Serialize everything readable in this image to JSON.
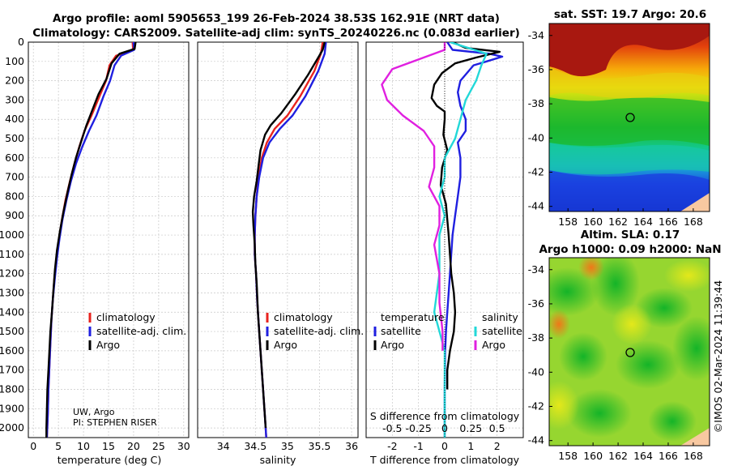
{
  "header": {
    "line1": "Argo profile: aoml 5905653_199 26-Feb-2024 38.53S 162.91E (NRT data)",
    "line2": "Climatology: CARS2009. Satellite-adj clim: synTS_20240226.nc (0.083d earlier)"
  },
  "credits": {
    "line1": "UW, Argo",
    "line2": "PI: STEPHEN RISER"
  },
  "watermark": "©IMOS 02-Mar-2024 11:39:44",
  "colors": {
    "climatology": "#e8231e",
    "satellite": "#1f1fe0",
    "argo": "#000000",
    "sat_s": "#22d8d8",
    "argo_s": "#e020e0"
  },
  "chart_data": [
    {
      "type": "line",
      "id": "temperature",
      "xlabel": "temperature (deg C)",
      "xlim": [
        -1,
        31
      ],
      "xticks": [
        "0",
        "5",
        "10",
        "15",
        "20",
        "25",
        "30"
      ],
      "ylim": [
        0,
        2050
      ],
      "yticks": [
        "0",
        "100",
        "200",
        "300",
        "400",
        "500",
        "600",
        "700",
        "800",
        "900",
        "1000",
        "1100",
        "1200",
        "1300",
        "1400",
        "1500",
        "1600",
        "1700",
        "1800",
        "1900",
        "2000"
      ],
      "legend": [
        "climatology",
        "satellite-adj. clim.",
        "Argo"
      ],
      "series": [
        {
          "name": "climatology",
          "color": "#e8231e",
          "points": [
            [
              19.8,
              0
            ],
            [
              19.9,
              40
            ],
            [
              16.5,
              70
            ],
            [
              15.2,
              120
            ],
            [
              14.5,
              200
            ],
            [
              13.2,
              280
            ],
            [
              11.6,
              380
            ],
            [
              10.2,
              460
            ],
            [
              9.2,
              540
            ],
            [
              8.2,
              630
            ],
            [
              7.3,
              720
            ],
            [
              6.4,
              820
            ],
            [
              5.7,
              920
            ],
            [
              5.1,
              1020
            ],
            [
              4.6,
              1120
            ],
            [
              4.2,
              1220
            ],
            [
              3.9,
              1330
            ],
            [
              3.6,
              1440
            ],
            [
              3.4,
              1560
            ],
            [
              3.2,
              1680
            ],
            [
              3.0,
              1800
            ],
            [
              2.9,
              1920
            ],
            [
              2.7,
              2050
            ]
          ]
        },
        {
          "name": "satellite-adj. clim.",
          "color": "#1f1fe0",
          "points": [
            [
              20.0,
              0
            ],
            [
              20.1,
              40
            ],
            [
              17.5,
              70
            ],
            [
              16.2,
              120
            ],
            [
              15.3,
              200
            ],
            [
              14.0,
              280
            ],
            [
              12.6,
              380
            ],
            [
              11.1,
              460
            ],
            [
              9.8,
              540
            ],
            [
              8.5,
              630
            ],
            [
              7.5,
              720
            ],
            [
              6.6,
              820
            ],
            [
              5.8,
              920
            ],
            [
              5.2,
              1020
            ],
            [
              4.7,
              1120
            ],
            [
              4.3,
              1220
            ],
            [
              3.9,
              1330
            ],
            [
              3.6,
              1440
            ],
            [
              3.4,
              1560
            ],
            [
              3.2,
              1680
            ],
            [
              3.0,
              1800
            ],
            [
              2.9,
              1920
            ],
            [
              2.7,
              2050
            ]
          ]
        },
        {
          "name": "Argo",
          "color": "#000000",
          "points": [
            [
              20.4,
              0
            ],
            [
              20.2,
              35
            ],
            [
              17.2,
              60
            ],
            [
              15.6,
              110
            ],
            [
              14.6,
              190
            ],
            [
              13.0,
              270
            ],
            [
              11.8,
              350
            ],
            [
              10.6,
              430
            ],
            [
              9.6,
              510
            ],
            [
              8.5,
              600
            ],
            [
              7.6,
              690
            ],
            [
              6.8,
              780
            ],
            [
              6.0,
              880
            ],
            [
              5.3,
              980
            ],
            [
              4.7,
              1080
            ],
            [
              4.3,
              1180
            ],
            [
              4.0,
              1290
            ],
            [
              3.7,
              1400
            ],
            [
              3.4,
              1500
            ],
            [
              3.2,
              1600
            ],
            [
              3.0,
              1700
            ],
            [
              2.8,
              1800
            ],
            [
              2.7,
              1900
            ],
            [
              2.6,
              2000
            ],
            [
              2.6,
              2050
            ]
          ]
        }
      ]
    },
    {
      "type": "line",
      "id": "salinity",
      "xlabel": "salinity",
      "xlim": [
        33.6,
        36.1
      ],
      "xticks": [
        "34",
        "34.5",
        "35",
        "35.5",
        "36"
      ],
      "ylim": [
        0,
        2050
      ],
      "legend": [
        "climatology",
        "satellite-adj. clim.",
        "Argo"
      ],
      "series": [
        {
          "name": "climatology",
          "color": "#e8231e",
          "points": [
            [
              35.55,
              0
            ],
            [
              35.52,
              60
            ],
            [
              35.42,
              150
            ],
            [
              35.2,
              280
            ],
            [
              35.0,
              380
            ],
            [
              34.8,
              450
            ],
            [
              34.68,
              520
            ],
            [
              34.6,
              600
            ],
            [
              34.55,
              700
            ],
            [
              34.52,
              800
            ],
            [
              34.5,
              900
            ],
            [
              34.49,
              1000
            ],
            [
              34.49,
              1100
            ],
            [
              34.51,
              1200
            ],
            [
              34.53,
              1350
            ],
            [
              34.56,
              1500
            ],
            [
              34.59,
              1650
            ],
            [
              34.62,
              1800
            ],
            [
              34.65,
              1950
            ],
            [
              34.67,
              2050
            ]
          ]
        },
        {
          "name": "satellite-adj. clim.",
          "color": "#1f1fe0",
          "points": [
            [
              35.6,
              0
            ],
            [
              35.58,
              60
            ],
            [
              35.48,
              150
            ],
            [
              35.28,
              280
            ],
            [
              35.08,
              380
            ],
            [
              34.88,
              450
            ],
            [
              34.72,
              520
            ],
            [
              34.62,
              600
            ],
            [
              34.56,
              700
            ],
            [
              34.52,
              800
            ],
            [
              34.5,
              900
            ],
            [
              34.49,
              1000
            ],
            [
              34.49,
              1100
            ],
            [
              34.51,
              1200
            ],
            [
              34.53,
              1350
            ],
            [
              34.56,
              1500
            ],
            [
              34.59,
              1650
            ],
            [
              34.62,
              1800
            ],
            [
              34.65,
              1950
            ],
            [
              34.67,
              2050
            ]
          ]
        },
        {
          "name": "Argo",
          "color": "#000000",
          "points": [
            [
              35.58,
              0
            ],
            [
              35.55,
              40
            ],
            [
              35.48,
              80
            ],
            [
              35.32,
              170
            ],
            [
              35.12,
              270
            ],
            [
              34.9,
              370
            ],
            [
              34.74,
              430
            ],
            [
              34.65,
              480
            ],
            [
              34.58,
              560
            ],
            [
              34.55,
              640
            ],
            [
              34.52,
              720
            ],
            [
              34.48,
              800
            ],
            [
              34.46,
              880
            ],
            [
              34.47,
              950
            ],
            [
              34.49,
              1050
            ],
            [
              34.5,
              1150
            ],
            [
              34.52,
              1250
            ],
            [
              34.54,
              1400
            ],
            [
              34.57,
              1550
            ],
            [
              34.6,
              1700
            ],
            [
              34.63,
              1850
            ],
            [
              34.66,
              2000
            ]
          ]
        }
      ]
    },
    {
      "type": "line",
      "id": "difference",
      "xlabel": "T difference from climatology",
      "xlabel_top": "S difference from climatology",
      "xlim": [
        -3,
        3
      ],
      "xticks": [
        "-2",
        "-1",
        "0",
        "1",
        "2"
      ],
      "s_xticks": [
        "-0.5",
        "-0.25",
        "0",
        "0.25",
        "0.5"
      ],
      "ylim": [
        0,
        2050
      ],
      "legend_temperature": {
        "title": "temperature",
        "items": [
          "satellite",
          "Argo"
        ]
      },
      "legend_salinity": {
        "title": "salinity",
        "items": [
          "satellite",
          "Argo"
        ]
      },
      "series": [
        {
          "name": "T satellite",
          "color": "#1f1fe0",
          "points": [
            [
              0.1,
              0
            ],
            [
              0.3,
              40
            ],
            [
              1.7,
              60
            ],
            [
              2.2,
              75
            ],
            [
              1.6,
              100
            ],
            [
              1.1,
              120
            ],
            [
              0.6,
              200
            ],
            [
              0.5,
              260
            ],
            [
              0.6,
              330
            ],
            [
              0.8,
              400
            ],
            [
              0.8,
              460
            ],
            [
              0.5,
              520
            ],
            [
              0.6,
              600
            ],
            [
              0.6,
              700
            ],
            [
              0.5,
              800
            ],
            [
              0.4,
              900
            ],
            [
              0.3,
              1000
            ],
            [
              0.25,
              1100
            ],
            [
              0.2,
              1200
            ],
            [
              0.15,
              1300
            ],
            [
              0.1,
              1400
            ],
            [
              0.05,
              1500
            ],
            [
              0.02,
              1600
            ],
            [
              0,
              1800
            ],
            [
              0,
              2050
            ]
          ]
        },
        {
          "name": "T Argo",
          "color": "#000000",
          "points": [
            [
              0.3,
              0
            ],
            [
              0.8,
              30
            ],
            [
              2.1,
              50
            ],
            [
              1.2,
              80
            ],
            [
              0.4,
              110
            ],
            [
              -0.1,
              160
            ],
            [
              -0.4,
              220
            ],
            [
              -0.5,
              290
            ],
            [
              -0.3,
              330
            ],
            [
              0,
              360
            ],
            [
              0,
              400
            ],
            [
              -0.05,
              480
            ],
            [
              0.1,
              560
            ],
            [
              -0.1,
              650
            ],
            [
              -0.15,
              740
            ],
            [
              0.05,
              840
            ],
            [
              0.1,
              920
            ],
            [
              0.15,
              1000
            ],
            [
              0.2,
              1100
            ],
            [
              0.25,
              1200
            ],
            [
              0.35,
              1300
            ],
            [
              0.4,
              1400
            ],
            [
              0.35,
              1500
            ],
            [
              0.2,
              1600
            ],
            [
              0.1,
              1700
            ],
            [
              0.1,
              1800
            ]
          ]
        },
        {
          "name": "S satellite",
          "color": "#22d8d8",
          "points": [
            [
              0.05,
              0
            ],
            [
              0.4,
              60
            ],
            [
              0.35,
              120
            ],
            [
              0.3,
              200
            ],
            [
              0.2,
              300
            ],
            [
              0.15,
              400
            ],
            [
              0.1,
              500
            ],
            [
              0,
              600
            ],
            [
              0,
              700
            ],
            [
              -0.05,
              800
            ],
            [
              0,
              900
            ],
            [
              -0.05,
              1000
            ],
            [
              -0.05,
              1200
            ],
            [
              -0.1,
              1400
            ],
            [
              0,
              1600
            ],
            [
              0,
              1800
            ],
            [
              0,
              2050
            ]
          ]
        },
        {
          "name": "S Argo",
          "color": "#e020e0",
          "points": [
            [
              0,
              0
            ],
            [
              0,
              40
            ],
            [
              -0.2,
              80
            ],
            [
              -0.5,
              140
            ],
            [
              -0.6,
              220
            ],
            [
              -0.55,
              300
            ],
            [
              -0.4,
              380
            ],
            [
              -0.2,
              460
            ],
            [
              -0.1,
              540
            ],
            [
              -0.1,
              650
            ],
            [
              -0.15,
              750
            ],
            [
              -0.05,
              850
            ],
            [
              -0.05,
              950
            ],
            [
              -0.1,
              1050
            ],
            [
              -0.05,
              1200
            ],
            [
              -0.05,
              1350
            ],
            [
              -0.02,
              1500
            ],
            [
              -0.02,
              1600
            ]
          ]
        }
      ]
    }
  ],
  "maps": {
    "sst": {
      "title": "sat. SST: 19.7 Argo: 20.6",
      "yticks": [
        "-34",
        "-36",
        "-38",
        "-40",
        "-42",
        "-44"
      ],
      "xticks": [
        "158",
        "160",
        "162",
        "164",
        "166",
        "168"
      ]
    },
    "sla": {
      "title1": "Altim. SLA: 0.17",
      "title2": "Argo h1000: 0.09 h2000: NaN",
      "yticks": [
        "-34",
        "-36",
        "-38",
        "-40",
        "-42",
        "-44"
      ],
      "xticks": [
        "158",
        "160",
        "162",
        "164",
        "166",
        "168"
      ]
    }
  }
}
